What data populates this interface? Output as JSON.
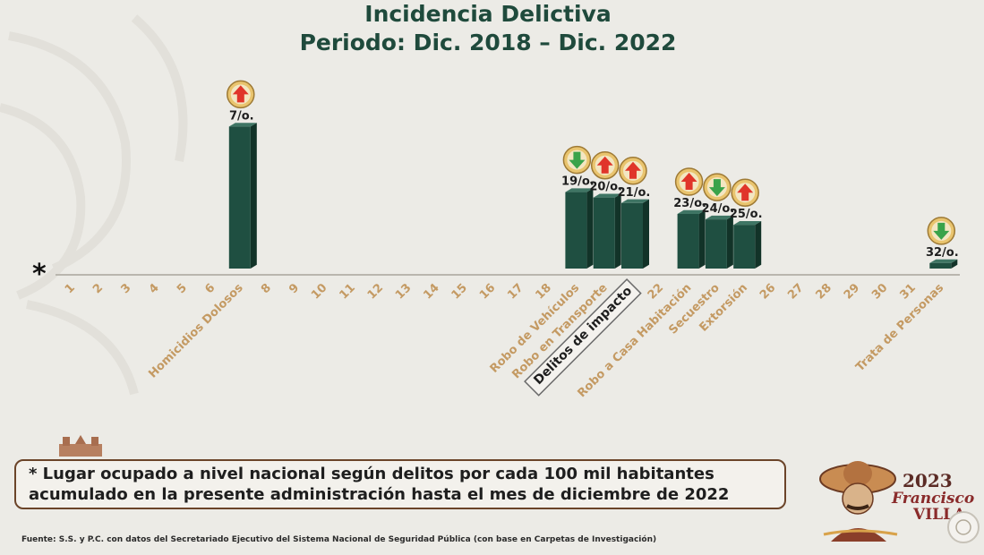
{
  "title": "Incidencia Delictiva",
  "subtitle": "Periodo: Dic. 2018 – Dic. 2022",
  "asterisk": "*",
  "note": {
    "line1": "* Lugar ocupado a nivel nacional según delitos por cada 100 mil habitantes",
    "line2": "acumulado en la presente administración hasta el mes de diciembre de 2022"
  },
  "source": "Fuente: S.S. y P.C. con datos del Secretariado Ejecutivo del Sistema Nacional de Seguridad Pública (con base en Carpetas de Investigación)",
  "logo": {
    "year": "2023",
    "name": "Francisco",
    "surname": "VILLA"
  },
  "colors": {
    "bar": "#1f4f41",
    "bar_side": "#123328",
    "bar_top": "#3f7564",
    "tick_label": "#c49a63",
    "label_dark": "#1e1e1e",
    "arrow_up": "#e0352a",
    "arrow_down": "#3aa34a",
    "badge_ring": "#e9c46e"
  },
  "chart_data": {
    "type": "bar",
    "categories": [
      "1",
      "2",
      "3",
      "4",
      "5",
      "6",
      "Homicidios Dolosos",
      "8",
      "9",
      "10",
      "11",
      "12",
      "13",
      "14",
      "15",
      "16",
      "17",
      "18",
      "Robo de Vehículos",
      "Robo en Transporte",
      "Delitos de impacto",
      "22",
      "Robo a Casa Habitación",
      "Secuestro",
      "Extorsión",
      "26",
      "27",
      "28",
      "29",
      "30",
      "31",
      "Trata de Personas"
    ],
    "highlight_category": "Delitos de impacto",
    "bars": [
      {
        "category": "Homicidios Dolosos",
        "rank": 7,
        "label": "7/o.",
        "trend": "up"
      },
      {
        "category": "Robo de Vehículos",
        "rank": 19,
        "label": "19/o.",
        "trend": "down"
      },
      {
        "category": "Robo en Transporte",
        "rank": 20,
        "label": "20/o.",
        "trend": "up"
      },
      {
        "category": "Delitos de impacto",
        "rank": 21,
        "label": "21/o.",
        "trend": "up"
      },
      {
        "category": "Robo a Casa Habitación",
        "rank": 23,
        "label": "23/o.",
        "trend": "up"
      },
      {
        "category": "Secuestro",
        "rank": 24,
        "label": "24/o.",
        "trend": "down"
      },
      {
        "category": "Extorsión",
        "rank": 25,
        "label": "25/o.",
        "trend": "up"
      },
      {
        "category": "Trata de Personas",
        "rank": 32,
        "label": "32/o.",
        "trend": "down"
      }
    ],
    "xlabel": "",
    "ylabel": ""
  }
}
